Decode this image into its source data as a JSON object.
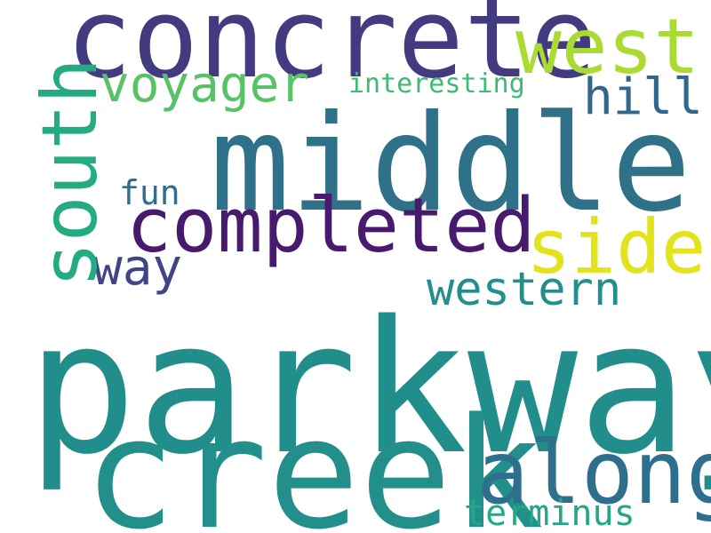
{
  "words": {
    "parkway": "parkway",
    "creek": "creek",
    "middle": "middle",
    "concrete": "concrete",
    "completed": "completed",
    "west": "west",
    "voyager": "voyager",
    "along": "along",
    "side": "side",
    "western": "western",
    "way": "way",
    "hill": "hill",
    "fun": "fun",
    "interesting": "interesting",
    "terminus": "terminus",
    "south": "south"
  },
  "colors": {
    "parkway": "#228e8c",
    "creek": "#228f8b",
    "middle": "#2f7189",
    "concrete": "#423b80",
    "completed": "#471a6e",
    "west": "#aadb33",
    "voyager": "#57c266",
    "along": "#2e6f8e",
    "side": "#e2e31b",
    "western": "#218f8c",
    "way": "#414487",
    "hill": "#30678e",
    "fun": "#2d6f8e",
    "interesting": "#3bbb75",
    "terminus": "#23a883",
    "south": "#25ab82"
  }
}
